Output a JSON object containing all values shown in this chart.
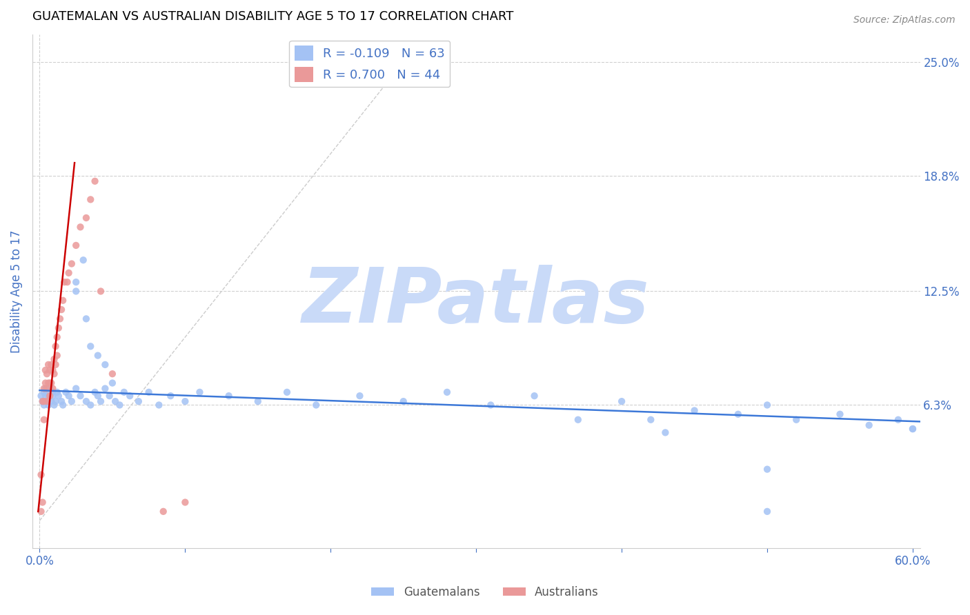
{
  "title": "GUATEMALAN VS AUSTRALIAN DISABILITY AGE 5 TO 17 CORRELATION CHART",
  "source": "Source: ZipAtlas.com",
  "ylabel": "Disability Age 5 to 17",
  "y_ticks_right": [
    0.063,
    0.125,
    0.188,
    0.25
  ],
  "y_tick_labels_right": [
    "6.3%",
    "12.5%",
    "18.8%",
    "25.0%"
  ],
  "xlim": [
    -0.005,
    0.605
  ],
  "ylim": [
    -0.015,
    0.265
  ],
  "blue_R": -0.109,
  "blue_N": 63,
  "pink_R": 0.7,
  "pink_N": 44,
  "blue_scatter_color": "#a4c2f4",
  "pink_scatter_color": "#ea9999",
  "blue_line_color": "#3c78d8",
  "pink_line_color": "#cc0000",
  "legend_label_blue": "Guatemalans",
  "legend_label_pink": "Australians",
  "watermark": "ZIPatlas",
  "watermark_color": "#c9daf8",
  "title_color": "#000000",
  "title_fontsize": 13,
  "axis_tick_color": "#4472c4",
  "blue_x": [
    0.001,
    0.002,
    0.003,
    0.003,
    0.004,
    0.004,
    0.005,
    0.005,
    0.006,
    0.006,
    0.007,
    0.008,
    0.009,
    0.009,
    0.01,
    0.011,
    0.012,
    0.013,
    0.015,
    0.016,
    0.018,
    0.02,
    0.022,
    0.025,
    0.028,
    0.032,
    0.035,
    0.038,
    0.04,
    0.042,
    0.045,
    0.048,
    0.052,
    0.055,
    0.058,
    0.062,
    0.068,
    0.075,
    0.082,
    0.09,
    0.1,
    0.11,
    0.13,
    0.15,
    0.17,
    0.19,
    0.22,
    0.25,
    0.28,
    0.31,
    0.34,
    0.37,
    0.4,
    0.42,
    0.45,
    0.48,
    0.5,
    0.52,
    0.55,
    0.57,
    0.59,
    0.6,
    0.6
  ],
  "blue_y": [
    0.068,
    0.065,
    0.07,
    0.063,
    0.068,
    0.072,
    0.065,
    0.07,
    0.068,
    0.063,
    0.072,
    0.065,
    0.07,
    0.068,
    0.063,
    0.065,
    0.07,
    0.068,
    0.065,
    0.063,
    0.07,
    0.068,
    0.065,
    0.072,
    0.068,
    0.065,
    0.063,
    0.07,
    0.068,
    0.065,
    0.072,
    0.068,
    0.065,
    0.063,
    0.07,
    0.068,
    0.065,
    0.07,
    0.063,
    0.068,
    0.065,
    0.07,
    0.068,
    0.065,
    0.07,
    0.063,
    0.068,
    0.065,
    0.07,
    0.063,
    0.068,
    0.055,
    0.065,
    0.055,
    0.06,
    0.058,
    0.063,
    0.055,
    0.058,
    0.052,
    0.055,
    0.05,
    0.05
  ],
  "blue_y_extra": [
    0.142,
    0.125,
    0.13,
    0.11,
    0.085,
    0.09,
    0.095,
    0.075,
    0.048,
    0.028,
    0.005
  ],
  "blue_x_extra": [
    0.03,
    0.025,
    0.025,
    0.032,
    0.045,
    0.04,
    0.035,
    0.05,
    0.43,
    0.5,
    0.5
  ],
  "pink_x": [
    0.001,
    0.001,
    0.002,
    0.002,
    0.003,
    0.003,
    0.003,
    0.004,
    0.004,
    0.005,
    0.005,
    0.005,
    0.006,
    0.006,
    0.007,
    0.007,
    0.007,
    0.008,
    0.008,
    0.009,
    0.009,
    0.01,
    0.01,
    0.011,
    0.011,
    0.012,
    0.012,
    0.013,
    0.014,
    0.015,
    0.016,
    0.017,
    0.019,
    0.02,
    0.022,
    0.025,
    0.028,
    0.032,
    0.035,
    0.038,
    0.042,
    0.05,
    0.085,
    0.1
  ],
  "pink_y": [
    0.005,
    0.025,
    0.01,
    0.065,
    0.055,
    0.065,
    0.072,
    0.075,
    0.082,
    0.065,
    0.072,
    0.08,
    0.075,
    0.085,
    0.068,
    0.075,
    0.082,
    0.075,
    0.085,
    0.072,
    0.082,
    0.08,
    0.088,
    0.085,
    0.095,
    0.09,
    0.1,
    0.105,
    0.11,
    0.115,
    0.12,
    0.13,
    0.13,
    0.135,
    0.14,
    0.15,
    0.16,
    0.165,
    0.175,
    0.185,
    0.125,
    0.08,
    0.005,
    0.01
  ],
  "ref_line_x": [
    0.0,
    0.255
  ],
  "ref_line_y": [
    0.0,
    0.255
  ],
  "blue_trend_x": [
    0.0,
    0.605
  ],
  "blue_trend_y": [
    0.071,
    0.054
  ],
  "pink_trend_x": [
    -0.001,
    0.024
  ],
  "pink_trend_y": [
    0.005,
    0.195
  ]
}
